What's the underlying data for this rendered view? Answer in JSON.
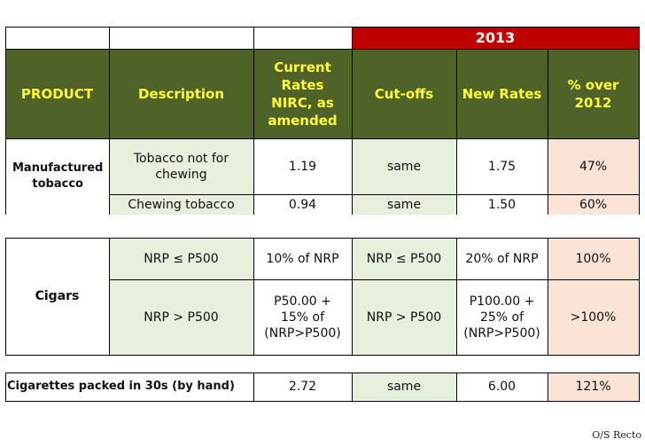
{
  "colors": {
    "header_green": "#4f6228",
    "header_text": "#ffff33",
    "year_red": "#c00000",
    "light_green": "#e6f0dc",
    "peach": "#fbe3d5"
  },
  "year": "2013",
  "headers": {
    "product": "PRODUCT",
    "description": "Description",
    "current_rates": "Current Rates NIRC, as amended",
    "cutoffs": "Cut-offs",
    "new_rates": "New Rates",
    "pct_over": "% over 2012"
  },
  "tobacco": {
    "product": "Manufactured tobacco",
    "rows": [
      {
        "description": "Tobacco not for chewing",
        "current": "1.19",
        "cutoff": "same",
        "new": "1.75",
        "pct": "47%"
      },
      {
        "description": "Chewing tobacco",
        "current": "0.94",
        "cutoff": "same",
        "new": "1.50",
        "pct": "60%"
      }
    ]
  },
  "cigars": {
    "product": "Cigars",
    "rows": [
      {
        "description": "NRP ≤ P500",
        "current": "10% of NRP",
        "cutoff": "NRP ≤ P500",
        "new": "20% of NRP",
        "pct": "100%"
      },
      {
        "description": "NRP > P500",
        "current": "P50.00 + 15% of (NRP>P500)",
        "cutoff": "NRP > P500",
        "new": "P100.00 + 25% of (NRP>P500)",
        "pct": ">100%"
      }
    ]
  },
  "cigarettes": {
    "product": "Cigarettes packed in 30s (by hand)",
    "current": "2.72",
    "cutoff": "same",
    "new": "6.00",
    "pct": "121%"
  },
  "footer": "O/S Recto"
}
